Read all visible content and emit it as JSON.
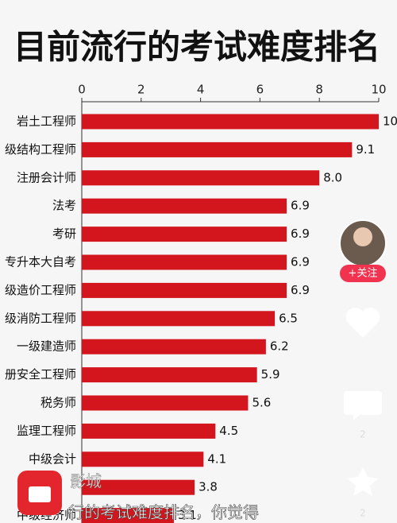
{
  "chart_data": {
    "type": "bar",
    "orientation": "horizontal",
    "title": "目前流行的考试难度排名",
    "categories": [
      "岩土工程师",
      "级结构工程师",
      "注册会计师",
      "法考",
      "考研",
      "专升本大自考",
      "级造价工程师",
      "级消防工程师",
      "一级建造师",
      "册安全工程师",
      "税务师",
      "监理工程师",
      "中级会计",
      null,
      "中级经济师"
    ],
    "values": [
      10,
      9.1,
      8,
      6.9,
      6.9,
      6.9,
      6.9,
      6.5,
      6.2,
      5.9,
      5.6,
      4.5,
      4.1,
      3.8,
      3.1
    ],
    "value_labels": [
      "10",
      "9.1",
      "8.0",
      "6.9",
      "6.9",
      "6.9",
      "6.9",
      "6.5",
      "6.2",
      "5.9",
      "5.6",
      "4.5",
      "4.1",
      "3.8",
      "3.1"
    ],
    "color": "#d3161e",
    "xlim": [
      0,
      10
    ],
    "xticks": [
      0,
      2,
      4,
      6,
      8,
      10
    ]
  },
  "ui": {
    "follow": "+关注",
    "comment_count": "2",
    "favorite_count": "2",
    "author": "影城",
    "caption": "行的考试难度排名，你觉得"
  }
}
